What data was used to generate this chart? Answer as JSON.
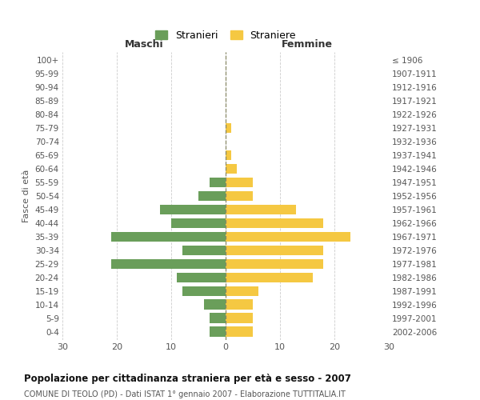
{
  "age_groups": [
    "0-4",
    "5-9",
    "10-14",
    "15-19",
    "20-24",
    "25-29",
    "30-34",
    "35-39",
    "40-44",
    "45-49",
    "50-54",
    "55-59",
    "60-64",
    "65-69",
    "70-74",
    "75-79",
    "80-84",
    "85-89",
    "90-94",
    "95-99",
    "100+"
  ],
  "birth_years": [
    "2002-2006",
    "1997-2001",
    "1992-1996",
    "1987-1991",
    "1982-1986",
    "1977-1981",
    "1972-1976",
    "1967-1971",
    "1962-1966",
    "1957-1961",
    "1952-1956",
    "1947-1951",
    "1942-1946",
    "1937-1941",
    "1932-1936",
    "1927-1931",
    "1922-1926",
    "1917-1921",
    "1912-1916",
    "1907-1911",
    "≤ 1906"
  ],
  "males": [
    3,
    3,
    4,
    8,
    9,
    21,
    8,
    21,
    10,
    12,
    5,
    3,
    0,
    0,
    0,
    0,
    0,
    0,
    0,
    0,
    0
  ],
  "females": [
    5,
    5,
    5,
    6,
    16,
    18,
    18,
    23,
    18,
    13,
    5,
    5,
    2,
    1,
    0,
    1,
    0,
    0,
    0,
    0,
    0
  ],
  "male_color": "#6a9e5a",
  "female_color": "#f5c842",
  "title_main": "Popolazione per cittadinanza straniera per età e sesso - 2007",
  "title_sub": "COMUNE DI TEOLO (PD) - Dati ISTAT 1° gennaio 2007 - Elaborazione TUTTITALIA.IT",
  "legend_male": "Stranieri",
  "legend_female": "Straniere",
  "xlabel_left": "Maschi",
  "xlabel_right": "Femmine",
  "ylabel_left": "Fasce di età",
  "xlim": 30,
  "background_color": "#ffffff",
  "grid_color": "#cccccc"
}
